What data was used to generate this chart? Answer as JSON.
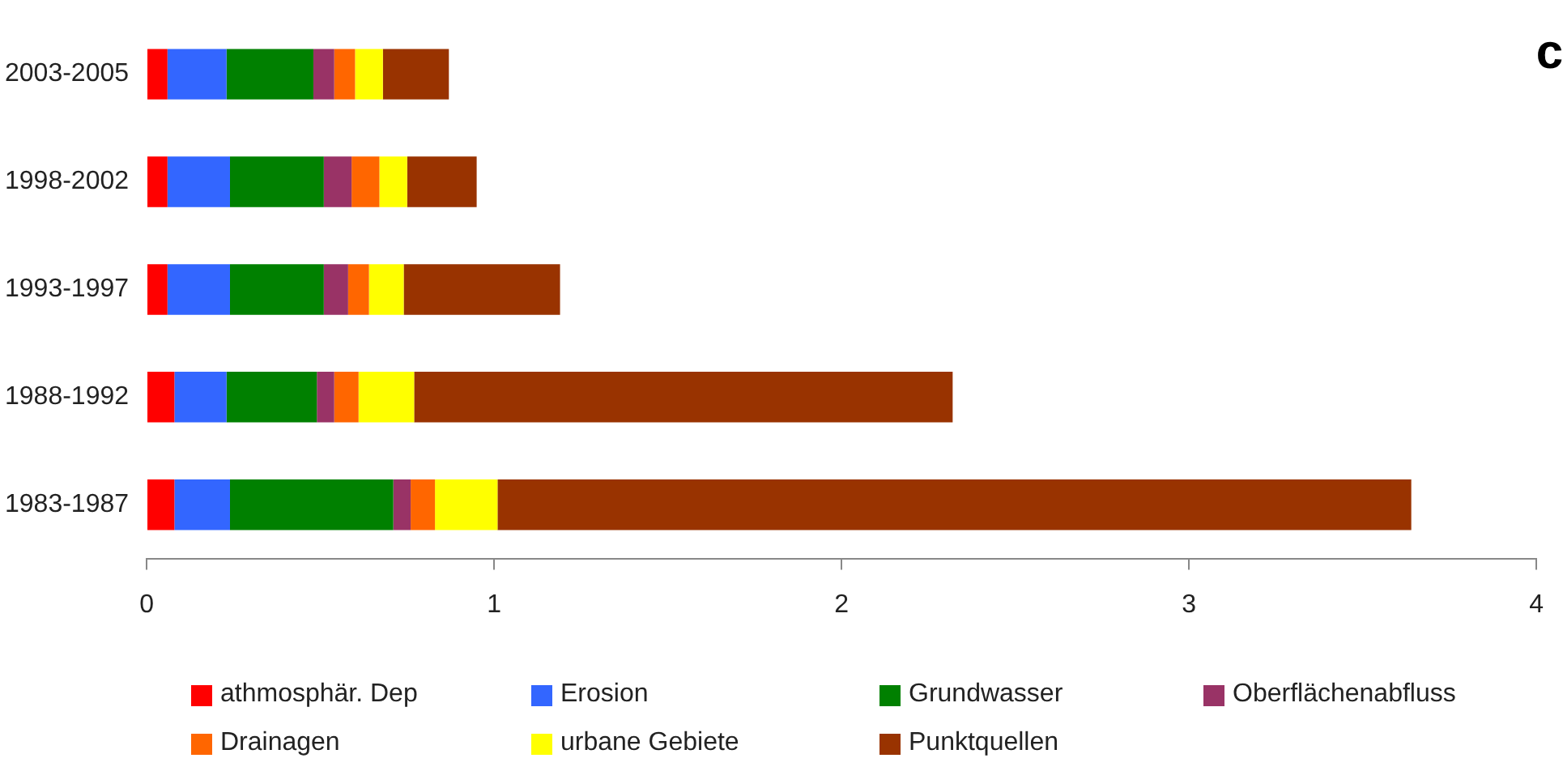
{
  "chart_data": {
    "type": "bar",
    "orientation": "horizontal",
    "stacked": true,
    "categories": [
      "2003-2005",
      "1998-2002",
      "1993-1997",
      "1988-1992",
      "1983-1987"
    ],
    "series": [
      {
        "name": "athmosphär. Dep",
        "color": "#ff0000",
        "values": [
          0.06,
          0.06,
          0.06,
          0.08,
          0.08
        ]
      },
      {
        "name": "Erosion",
        "color": "#3366ff",
        "values": [
          0.17,
          0.18,
          0.18,
          0.15,
          0.16
        ]
      },
      {
        "name": "Grundwasser",
        "color": "#008000",
        "values": [
          0.25,
          0.27,
          0.27,
          0.26,
          0.47
        ]
      },
      {
        "name": "Oberflächenabfluss",
        "color": "#993366",
        "values": [
          0.06,
          0.08,
          0.07,
          0.05,
          0.05
        ]
      },
      {
        "name": "Drainagen",
        "color": "#ff6600",
        "values": [
          0.06,
          0.08,
          0.06,
          0.07,
          0.07
        ]
      },
      {
        "name": "urbane Gebiete",
        "color": "#ffff00",
        "values": [
          0.08,
          0.08,
          0.1,
          0.16,
          0.18
        ]
      },
      {
        "name": "Punktquellen",
        "color": "#993300",
        "values": [
          0.19,
          0.2,
          0.45,
          1.55,
          2.63
        ]
      }
    ],
    "xlim": [
      0,
      4
    ],
    "xticks": [
      0,
      1,
      2,
      3,
      4
    ],
    "grid": false,
    "legend": "bottom",
    "annotations": [
      "c"
    ]
  }
}
